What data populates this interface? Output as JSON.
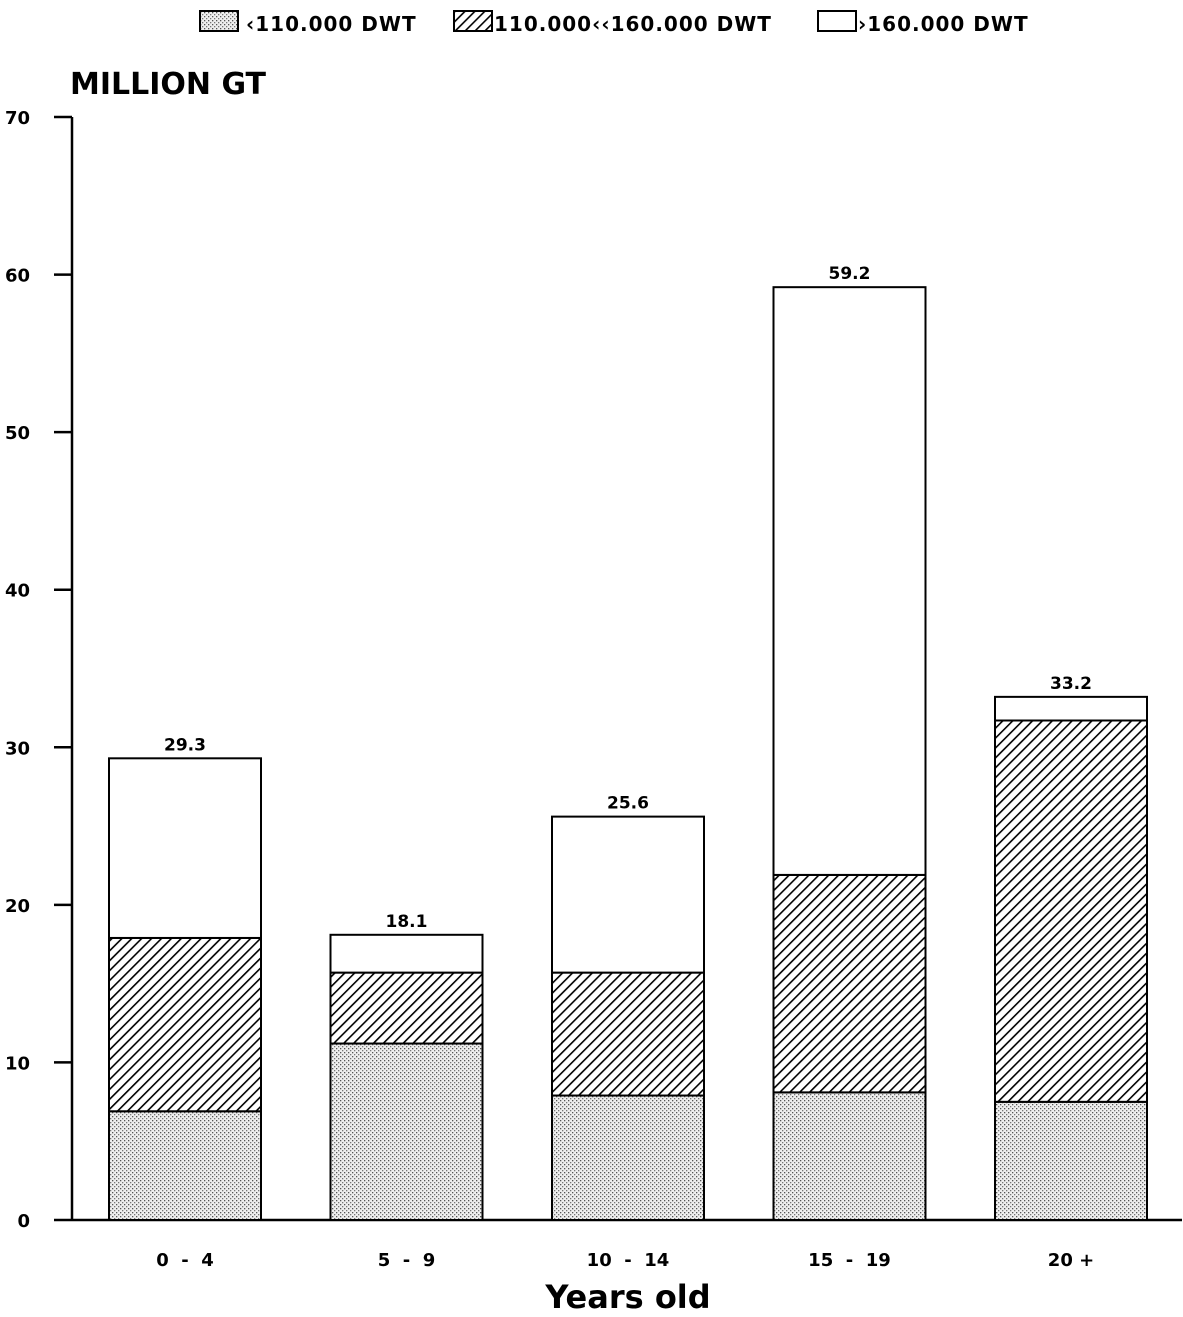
{
  "chart_data": {
    "type": "bar",
    "stacked": true,
    "ylabel": "MILLION GT",
    "xlabel": "Years old",
    "ylim": [
      0,
      70
    ],
    "yticks": [
      0,
      10,
      20,
      30,
      40,
      50,
      60,
      70
    ],
    "categories": [
      "0  -  4",
      "5  -  9",
      "10  -  14",
      "15  -  19",
      "20 +"
    ],
    "series": [
      {
        "name": "‹110.000 DWT",
        "pattern": "dots",
        "values": [
          6.9,
          11.2,
          7.9,
          8.1,
          7.5
        ]
      },
      {
        "name": "110.000‹‹160.000 DWT",
        "pattern": "hatch",
        "values": [
          11.0,
          4.5,
          7.8,
          13.8,
          24.2
        ]
      },
      {
        "name": "›160.000 DWT",
        "pattern": "blank",
        "values": [
          11.4,
          2.4,
          9.9,
          37.3,
          1.5
        ]
      }
    ],
    "totals": [
      "29.3",
      "18.1",
      "25.6",
      "59.2",
      "33.2"
    ],
    "legend_position": "top",
    "grid": false
  }
}
